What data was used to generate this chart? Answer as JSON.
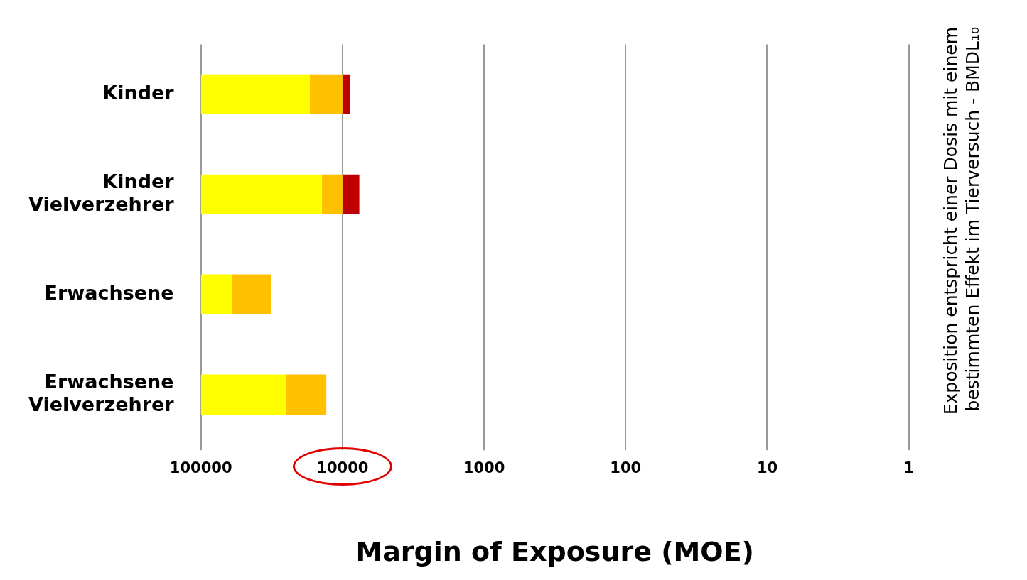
{
  "chart_data": {
    "type": "bar",
    "orientation": "horizontal",
    "log": "x",
    "grid": "x",
    "xlabel": "Margin of Exposure (MOE)",
    "categories": [
      "Kinder",
      "Kinder\nVielverzehrer",
      "Erwachsene",
      "Erwachsene\nVielverzehrer"
    ],
    "series": [
      {
        "color": "#ffff00",
        "base": [
          100000,
          100000,
          100000,
          100000
        ],
        "values": [
          -83000,
          -86000,
          -40000,
          -75000
        ]
      },
      {
        "color": "#ffc000",
        "base": [
          17000,
          14000,
          60000,
          25000
        ],
        "values": [
          -7000,
          -4000,
          -28000,
          -12000
        ]
      },
      {
        "color": "#c00000",
        "base": [
          10000,
          10000,
          null,
          null
        ],
        "values": [
          -1200,
          -2400,
          null,
          null
        ]
      }
    ],
    "xlim": [
      100000,
      1
    ],
    "xticks": [
      100000,
      10000,
      1000,
      100,
      10,
      1
    ],
    "annotations": [
      "Exposition entspricht einer Dosis mit einem bestimmten Effekt im Tierversuch - BMDL₁₀"
    ]
  }
}
